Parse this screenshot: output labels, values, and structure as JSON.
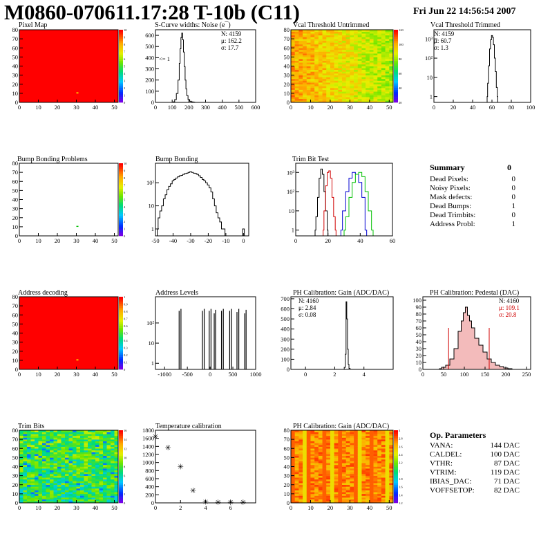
{
  "header": {
    "title": "M0860-070611.17:28 T-10b (C11)",
    "date": "Fri Jun 22 14:56:54 2007"
  },
  "colors": {
    "hist_line": "#000000",
    "trim_red": "#d00000",
    "trim_blue": "#0000d0",
    "trim_green": "#00c000",
    "pedestal_fill": "#d02020",
    "map_red": "#ff0000"
  },
  "panels": [
    {
      "id": "pixel-map",
      "title": "Pixel Map"
    },
    {
      "id": "scurve",
      "title": "S-Curve widths: Noise (e¯)"
    },
    {
      "id": "vcal-untrimmed",
      "title": "Vcal Threshold Untrimmed"
    },
    {
      "id": "vcal-trimmed",
      "title": "Vcal Threshold Trimmed"
    },
    {
      "id": "bump-problems",
      "title": "Bump Bonding Problems"
    },
    {
      "id": "bump-bonding",
      "title": "Bump Bonding"
    },
    {
      "id": "trim-bit-test",
      "title": "Trim Bit Test"
    },
    {
      "id": "address-decoding",
      "title": "Address decoding"
    },
    {
      "id": "address-levels",
      "title": "Address Levels"
    },
    {
      "id": "ph-gain",
      "title": "PH Calibration: Gain (ADC/DAC)"
    },
    {
      "id": "ph-pedestal",
      "title": "PH Calibration: Pedestal (DAC)"
    },
    {
      "id": "trim-bits",
      "title": "Trim Bits"
    },
    {
      "id": "temperature",
      "title": "Temperature calibration"
    },
    {
      "id": "ph-gain-map",
      "title": "PH Calibration: Gain (ADC/DAC)"
    }
  ],
  "stats": {
    "scurve": {
      "n": "N: 4159",
      "mu": "μ: 162.2",
      "sigma": "σ: 17.7",
      "note": "<= 1"
    },
    "vcal_trimmed": {
      "n": "N: 4159",
      "mu": "μ: 60.7",
      "sigma": "σ:  1.3"
    },
    "ph_gain": {
      "n": "N: 4160",
      "mu": "μ: 2.84",
      "sigma": "σ: 0.08"
    },
    "ph_pedestal": {
      "n": "N: 4160",
      "mu": "μ: 109.1",
      "sigma": "σ: 20.8"
    }
  },
  "summary": {
    "title": "Summary",
    "total": "0",
    "rows": [
      {
        "label": "Dead Pixels:",
        "value": "0"
      },
      {
        "label": "Noisy Pixels:",
        "value": "0"
      },
      {
        "label": "Mask defects:",
        "value": "0"
      },
      {
        "label": "Dead Bumps:",
        "value": "1"
      },
      {
        "label": "Dead Trimbits:",
        "value": "0"
      },
      {
        "label": "Address Probl:",
        "value": "1"
      }
    ]
  },
  "op_params": {
    "title": "Op. Parameters",
    "rows": [
      {
        "label": "VANA:",
        "value": "144 DAC"
      },
      {
        "label": "CALDEL:",
        "value": "100 DAC"
      },
      {
        "label": "VTHR:",
        "value": "87 DAC"
      },
      {
        "label": "VTRIM:",
        "value": "119 DAC"
      },
      {
        "label": "IBIAS_DAC:",
        "value": "71 DAC"
      },
      {
        "label": "VOFFSETOP:",
        "value": "82 DAC"
      }
    ]
  },
  "chart_data": [
    {
      "type": "heatmap",
      "title": "Pixel Map",
      "xlim": [
        0,
        52
      ],
      "ylim": [
        0,
        80
      ],
      "xticks": [
        "0",
        "10",
        "20",
        "30",
        "40",
        "50"
      ],
      "yticks": [
        "0",
        "10",
        "20",
        "30",
        "40",
        "50",
        "60",
        "70",
        "80"
      ],
      "zticks": [
        "0",
        "1",
        "2",
        "3",
        "4",
        "5",
        "6",
        "7",
        "8",
        "9",
        "10"
      ],
      "uniform_value": 10,
      "special_pixel": [
        30,
        11
      ]
    },
    {
      "type": "bar",
      "title": "S-Curve widths: Noise (e¯)",
      "xlim": [
        0,
        600
      ],
      "ylim": [
        0,
        650
      ],
      "xticks": [
        "0",
        "100",
        "200",
        "300",
        "400",
        "500",
        "600"
      ],
      "yticks": [
        "0",
        "100",
        "200",
        "300",
        "400",
        "500",
        "600"
      ],
      "x": [
        100,
        110,
        120,
        130,
        140,
        145,
        150,
        155,
        160,
        165,
        170,
        175,
        180,
        185,
        190,
        200,
        210,
        220,
        230,
        240
      ],
      "values": [
        0,
        5,
        25,
        80,
        200,
        350,
        480,
        580,
        620,
        560,
        450,
        320,
        200,
        120,
        60,
        25,
        10,
        5,
        2,
        0
      ]
    },
    {
      "type": "heatmap",
      "title": "Vcal Threshold Untrimmed",
      "xlim": [
        0,
        52
      ],
      "ylim": [
        0,
        80
      ],
      "xticks": [
        "0",
        "10",
        "20",
        "30",
        "40",
        "50"
      ],
      "yticks": [
        "0",
        "10",
        "20",
        "30",
        "40",
        "50",
        "60",
        "70",
        "80"
      ],
      "zticks": [
        "20",
        "40",
        "60",
        "80",
        "100",
        "120"
      ],
      "gradient": "orange-left to yellow-green-right"
    },
    {
      "type": "bar",
      "title": "Vcal Threshold Trimmed",
      "scale": "log",
      "xlim": [
        0,
        100
      ],
      "ylim": [
        0.5,
        3000
      ],
      "xticks": [
        "0",
        "20",
        "40",
        "60",
        "80",
        "100"
      ],
      "yticks": [
        "1",
        "10",
        "10²",
        "10³"
      ],
      "x": [
        55,
        56,
        57,
        58,
        59,
        60,
        61,
        62,
        63,
        64,
        65,
        66
      ],
      "values": [
        1,
        5,
        40,
        300,
        900,
        1500,
        1200,
        500,
        100,
        20,
        3,
        1
      ]
    },
    {
      "type": "heatmap",
      "title": "Bump Bonding Problems",
      "xlim": [
        0,
        52
      ],
      "ylim": [
        0,
        80
      ],
      "xticks": [
        "0",
        "10",
        "20",
        "30",
        "40",
        "50"
      ],
      "yticks": [
        "0",
        "10",
        "20",
        "30",
        "40",
        "50",
        "60",
        "70",
        "80"
      ],
      "zticks": [
        "0",
        "1",
        "2",
        "3",
        "4",
        "5",
        "6",
        "7",
        "8",
        "9",
        "10"
      ],
      "special_pixel": [
        30,
        11
      ]
    },
    {
      "type": "bar",
      "title": "Bump Bonding",
      "scale": "log",
      "xlim": [
        -50,
        3
      ],
      "ylim": [
        0.5,
        700
      ],
      "xticks": [
        "-50",
        "-40",
        "-30",
        "-20",
        "-10",
        "0"
      ],
      "yticks": [
        "1",
        "10",
        "10²"
      ],
      "x": [
        -49,
        -48,
        -47,
        -46,
        -45,
        -44,
        -43,
        -42,
        -41,
        -40,
        -39,
        -38,
        -37,
        -36,
        -35,
        -34,
        -33,
        -32,
        -31,
        -30,
        -29,
        -28,
        -27,
        -26,
        -25,
        -24,
        -23,
        -22,
        -21,
        -20,
        -19,
        -18,
        -17,
        -16,
        -15,
        -14,
        -13,
        -12,
        -11,
        -10,
        -9,
        -8,
        -7,
        -6,
        -5,
        -4,
        -3,
        -2,
        -1,
        0,
        1
      ],
      "values": [
        1,
        3,
        6,
        10,
        20,
        30,
        50,
        70,
        90,
        120,
        140,
        160,
        180,
        200,
        210,
        230,
        250,
        260,
        280,
        300,
        280,
        260,
        250,
        230,
        200,
        170,
        140,
        120,
        100,
        80,
        60,
        40,
        20,
        10,
        5,
        3,
        2,
        1,
        1,
        0,
        0,
        0,
        0,
        0,
        0,
        0,
        0,
        0,
        0,
        1,
        0
      ]
    },
    {
      "type": "line",
      "title": "Trim Bit Test",
      "scale": "log",
      "xlim": [
        0,
        60
      ],
      "ylim": [
        0.5,
        3000
      ],
      "xticks": [
        "0",
        "20",
        "40",
        "60"
      ],
      "yticks": [
        "1",
        "10",
        "10²",
        "10³"
      ],
      "series": [
        {
          "color": "#000000",
          "x": [
            12,
            13,
            14,
            15,
            16,
            17,
            18,
            19,
            20
          ],
          "values": [
            1,
            5,
            50,
            500,
            1500,
            800,
            100,
            10,
            1
          ]
        },
        {
          "color": "#d00000",
          "x": [
            17,
            18,
            19,
            20,
            21,
            22,
            23,
            24,
            25
          ],
          "values": [
            1,
            10,
            200,
            1000,
            1200,
            500,
            50,
            5,
            1
          ]
        },
        {
          "color": "#0000d0",
          "x": [
            28,
            30,
            32,
            34,
            36,
            38,
            40,
            42,
            44
          ],
          "values": [
            1,
            10,
            100,
            500,
            1000,
            800,
            300,
            50,
            1
          ]
        },
        {
          "color": "#00c000",
          "x": [
            30,
            32,
            34,
            36,
            38,
            40,
            42,
            44,
            46,
            48
          ],
          "values": [
            1,
            5,
            50,
            300,
            800,
            1000,
            600,
            100,
            10,
            1
          ]
        }
      ]
    },
    {
      "type": "heatmap",
      "title": "Address decoding",
      "xlim": [
        0,
        52
      ],
      "ylim": [
        0,
        80
      ],
      "xticks": [
        "0",
        "10",
        "20",
        "30",
        "40",
        "50"
      ],
      "yticks": [
        "0",
        "10",
        "20",
        "30",
        "40",
        "50",
        "60",
        "70",
        "80"
      ],
      "zticks": [
        "0",
        "0.1",
        "0.2",
        "0.3",
        "0.4",
        "0.5",
        "0.6",
        "0.7",
        "0.8",
        "0.9",
        "1"
      ],
      "uniform_value": 1,
      "special_pixel": [
        30,
        11
      ]
    },
    {
      "type": "bar",
      "title": "Address Levels",
      "scale": "log",
      "xlim": [
        -1200,
        1000
      ],
      "ylim": [
        0.5,
        2000
      ],
      "xticks": [
        "-1000",
        "-500",
        "0",
        "500",
        "1000"
      ],
      "yticks": [
        "1",
        "10",
        "10²"
      ],
      "x": [
        -680,
        -640,
        -170,
        -130,
        -20,
        20,
        90,
        120,
        250,
        290,
        430,
        470,
        590,
        630,
        760,
        790
      ],
      "values": [
        400,
        500,
        400,
        500,
        400,
        500,
        300,
        450,
        400,
        500,
        400,
        500,
        350,
        500,
        300,
        450
      ]
    },
    {
      "type": "bar",
      "title": "PH Calibration: Gain (ADC/DAC)",
      "xlim": [
        -1,
        6
      ],
      "ylim": [
        0,
        720
      ],
      "xticks": [
        "0",
        "2",
        "4"
      ],
      "yticks": [
        "0",
        "100",
        "200",
        "300",
        "400",
        "500",
        "600",
        "700"
      ],
      "x": [
        2.6,
        2.7,
        2.75,
        2.8,
        2.85,
        2.9,
        2.95,
        3.0,
        3.1
      ],
      "values": [
        0,
        20,
        150,
        670,
        500,
        200,
        50,
        10,
        0
      ]
    },
    {
      "type": "bar",
      "title": "PH Calibration: Pedestal (DAC)",
      "xlim": [
        0,
        260
      ],
      "ylim": [
        0,
        105
      ],
      "xticks": [
        "0",
        "50",
        "100",
        "150",
        "200",
        "250"
      ],
      "yticks": [
        "0",
        "10",
        "20",
        "30",
        "40",
        "50",
        "60",
        "70",
        "80",
        "90",
        "100"
      ],
      "x": [
        40,
        50,
        60,
        70,
        80,
        90,
        95,
        100,
        105,
        110,
        115,
        120,
        130,
        140,
        150,
        160,
        170,
        180,
        190,
        200,
        210,
        220
      ],
      "values": [
        1,
        3,
        6,
        15,
        30,
        55,
        70,
        82,
        90,
        78,
        70,
        60,
        45,
        35,
        25,
        15,
        10,
        6,
        4,
        2,
        1,
        0
      ]
    },
    {
      "type": "heatmap",
      "title": "Trim Bits",
      "xlim": [
        0,
        52
      ],
      "ylim": [
        0,
        80
      ],
      "xticks": [
        "0",
        "10",
        "20",
        "30",
        "40",
        "50"
      ],
      "yticks": [
        "0",
        "10",
        "20",
        "30",
        "40",
        "50",
        "60",
        "70",
        "80"
      ],
      "zticks": [
        "0",
        "2",
        "4",
        "6",
        "8",
        "10",
        "12",
        "14",
        "16"
      ]
    },
    {
      "type": "scatter",
      "title": "Temperature calibration",
      "xlim": [
        0,
        8
      ],
      "ylim": [
        0,
        1800
      ],
      "xticks": [
        "0",
        "2",
        "4",
        "6"
      ],
      "yticks": [
        "0",
        "200",
        "400",
        "600",
        "800",
        "1000",
        "1200",
        "1400",
        "1600",
        "1800"
      ],
      "x": [
        0,
        1,
        2,
        3,
        4,
        5,
        6,
        7
      ],
      "values": [
        1650,
        1370,
        900,
        310,
        25,
        20,
        20,
        20
      ]
    },
    {
      "type": "heatmap",
      "title": "PH Calibration: Gain (ADC/DAC)",
      "xlim": [
        0,
        52
      ],
      "ylim": [
        0,
        80
      ],
      "xticks": [
        "0",
        "10",
        "20",
        "30",
        "40",
        "50"
      ],
      "yticks": [
        "0",
        "10",
        "20",
        "30",
        "40",
        "50",
        "60",
        "70",
        "80"
      ],
      "zticks": [
        "1.2",
        "1.4",
        "1.6",
        "1.8",
        "2",
        "2.2",
        "2.4",
        "2.6",
        "2.8",
        "3"
      ]
    }
  ]
}
